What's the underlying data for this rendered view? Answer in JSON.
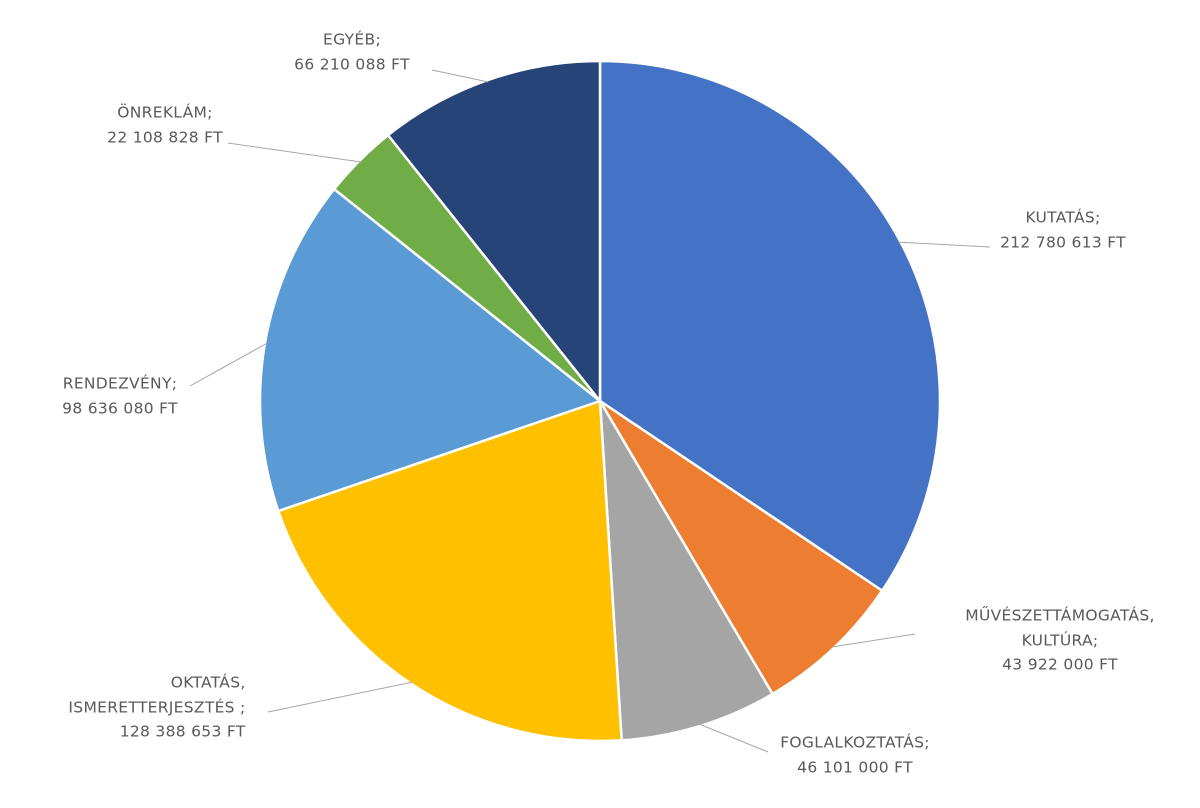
{
  "chart_data": {
    "type": "pie",
    "categories": [
      "KUTATÁS;",
      "MŰVÉSZETTÁMOGATÁS,\nKULTÚRA;",
      "FOGLALKOZTATÁS;",
      "OKTATÁS,\nISMERETTERJESZTÉS ;",
      "RENDEZVÉNY;",
      "ÖNREKLÁM;",
      "EGYÉB;"
    ],
    "values": [
      212780613,
      43922000,
      46101000,
      128388653,
      98636080,
      22108828,
      66210088
    ],
    "value_labels": [
      "212 780 613 FT",
      "43 922 000 FT",
      "46 101 000 FT",
      "128 388 653 FT",
      "98 636 080 FT",
      "22 108 828 FT",
      "66 210 088 FT"
    ],
    "colors": [
      "#4472c4",
      "#ed7d31",
      "#a5a5a5",
      "#ffc000",
      "#5b9bd5",
      "#70ad47",
      "#264478"
    ]
  }
}
